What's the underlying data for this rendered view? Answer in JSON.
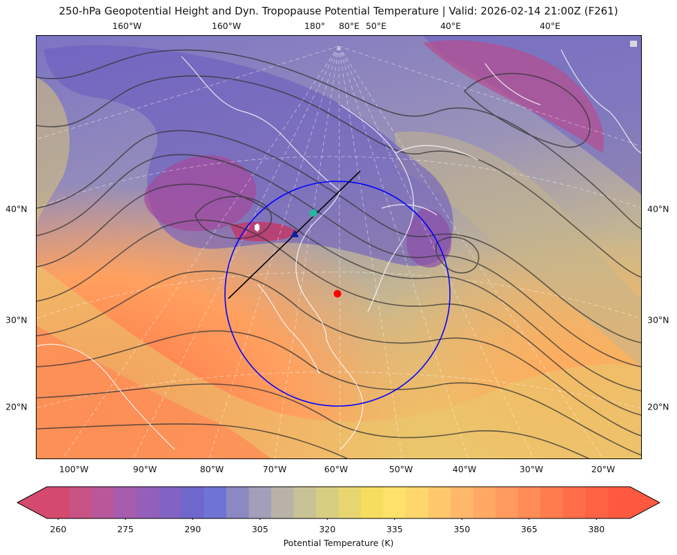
{
  "title": "250-hPa Geopotential Height and Dyn. Tropopause Potential Temperature   |  Valid: 2026-02-14 21:00Z (F261)",
  "top_lon_labels": [
    "160°W",
    "160°W",
    "180°",
    "80°E",
    "50°E",
    "40°E",
    "40°E"
  ],
  "bottom_lon_labels": [
    "100°W",
    "90°W",
    "80°W",
    "70°W",
    "60°W",
    "50°W",
    "40°W",
    "30°W",
    "20°W"
  ],
  "left_lat_labels": [
    "40°N",
    "30°N",
    "20°N"
  ],
  "right_lat_labels": [
    "40°N",
    "30°N",
    "20°N"
  ],
  "colorbar": {
    "label": "Potential Temperature (K)",
    "ticks": [
      "260",
      "275",
      "290",
      "305",
      "320",
      "335",
      "350",
      "365",
      "380"
    ],
    "range_min": 257.5,
    "range_max": 387.5,
    "colors": [
      "#d44a6e",
      "#c75284",
      "#b8589a",
      "#a65cad",
      "#935fbb",
      "#8163c4",
      "#7067cc",
      "#6f73d3",
      "#8b88c3",
      "#a39eb9",
      "#b8b2a9",
      "#c9c296",
      "#d8ce82",
      "#e7d66f",
      "#f6dd5f",
      "#fee26b",
      "#ffd66d",
      "#ffc76c",
      "#ffb86a",
      "#ffa965",
      "#ff9a5f",
      "#ff8b57",
      "#ff7c4f",
      "#ff6e48",
      "#ff6242",
      "#ff5a3f"
    ]
  },
  "markers": {
    "ring_center": "red-dot",
    "cross_section": "black-line",
    "points": [
      "white-hexagon",
      "navy-triangle",
      "teal-circle",
      "red-dot"
    ]
  },
  "colors": {
    "ring": "#0000ff",
    "center_dot": "#ff0000",
    "contours": "#333333",
    "coastlines": "#ffffff"
  }
}
